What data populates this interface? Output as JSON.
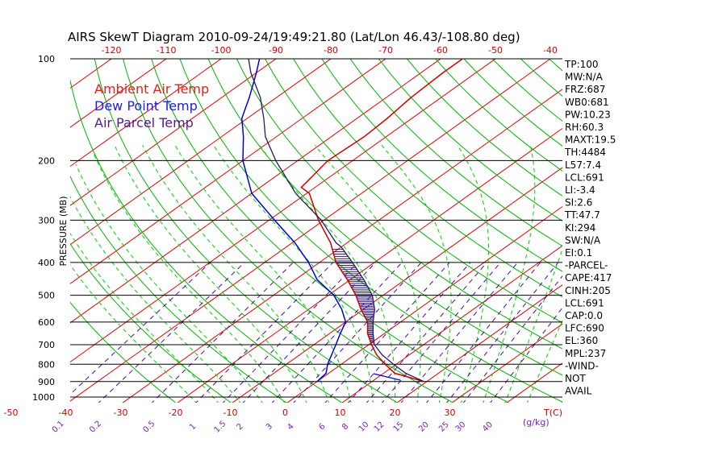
{
  "title": "AIRS SkewT Diagram 2010-09-24/19:49:21.80 (Lat/Lon 46.43/-108.80 deg)",
  "colors": {
    "background": "#ffffff",
    "isotherm": "#e00000",
    "dry_adiabat": "#00b400",
    "moist_adiabat": "#00d000",
    "mixing_ratio": "#4b0aa8",
    "ambient_temp": "#d00000",
    "dew_point": "#0000d0",
    "parcel": "#2a1a60",
    "axis_text": "#000000",
    "temp_tick_text": "#d00000",
    "mix_tick_text": "#7a20c0"
  },
  "legend": [
    {
      "label": "Ambient Air Temp",
      "color": "#e02020"
    },
    {
      "label": "Dew Point Temp",
      "color": "#2020e0"
    },
    {
      "label": "Air Parcel Temp",
      "color": "#5a1a8a"
    }
  ],
  "ylabel": "PRESSURE (MB)",
  "pressure_ticks": [
    "100",
    "200",
    "300",
    "400",
    "500",
    "600",
    "700",
    "800",
    "900",
    "1000"
  ],
  "temp_top_ticks": [
    "-120",
    "-110",
    "-100",
    "-90",
    "-80",
    "-70",
    "-60",
    "-50",
    "-40"
  ],
  "temp_bottom_ticks": [
    "-50",
    "-40",
    "-30",
    "-20",
    "-10",
    "0",
    "10",
    "20",
    "30"
  ],
  "temp_unit_label": "T(C)",
  "mix_ticks": [
    "0.1",
    "0.2",
    "0.5",
    "1",
    "1.5",
    "2",
    "3",
    "4",
    "6",
    "8",
    "10",
    "12",
    "15",
    "20",
    "25",
    "30",
    "40"
  ],
  "mix_unit_label": "(g/kg)",
  "stats": [
    "TP:100",
    "MW:N/A",
    "FRZ:687",
    "WB0:681",
    "PW:10.23",
    "RH:60.3",
    "MAXT:19.5",
    "TH:4484",
    "L57:7.4",
    "LCL:691",
    "LI:-3.4",
    "SI:2.6",
    "TT:47.7",
    "KI:294",
    "SW:N/A",
    "EI:0.1",
    "-PARCEL-",
    "CAPE:417",
    "CINH:205",
    "LCL:691",
    "CAP:0.0",
    "LFC:690",
    "EL:360",
    "MPL:237",
    "-WIND-",
    "NOT",
    "AVAIL"
  ],
  "chart_data": {
    "type": "line",
    "x_axis": "Temperature (C), skewed",
    "y_axis": "Pressure (mb), log scale",
    "ylim": [
      1050,
      100
    ],
    "series": [
      {
        "name": "Ambient Air Temp",
        "points": [
          [
            900,
            19.5
          ],
          [
            850,
            12
          ],
          [
            800,
            8
          ],
          [
            750,
            4
          ],
          [
            700,
            0.5
          ],
          [
            650,
            -3
          ],
          [
            600,
            -6
          ],
          [
            550,
            -10.5
          ],
          [
            500,
            -15
          ],
          [
            450,
            -20.5
          ],
          [
            400,
            -27
          ],
          [
            350,
            -33
          ],
          [
            300,
            -41
          ],
          [
            250,
            -49.5
          ],
          [
            240,
            -52.5
          ],
          [
            200,
            -54.5
          ],
          [
            170,
            -54
          ],
          [
            150,
            -54.5
          ],
          [
            130,
            -55.5
          ],
          [
            110,
            -56
          ],
          [
            100,
            -56
          ]
        ]
      },
      {
        "name": "Dew Point Temp",
        "points": [
          [
            900,
            0
          ],
          [
            850,
            -0.5
          ],
          [
            800,
            -2.5
          ],
          [
            700,
            -6
          ],
          [
            650,
            -8
          ],
          [
            600,
            -10
          ],
          [
            550,
            -14
          ],
          [
            500,
            -19
          ],
          [
            450,
            -26
          ],
          [
            400,
            -32
          ],
          [
            350,
            -39.5
          ],
          [
            300,
            -49
          ],
          [
            250,
            -60
          ],
          [
            200,
            -70
          ],
          [
            170,
            -76
          ],
          [
            150,
            -81
          ],
          [
            130,
            -85
          ],
          [
            110,
            -90
          ],
          [
            100,
            -93
          ]
        ]
      },
      {
        "name": "Air Parcel Temp",
        "points": [
          [
            900,
            19.5
          ],
          [
            850,
            14
          ],
          [
            800,
            9.5
          ],
          [
            750,
            5
          ],
          [
            700,
            1
          ],
          [
            650,
            -2
          ],
          [
            600,
            -5
          ],
          [
            550,
            -8
          ],
          [
            500,
            -12
          ],
          [
            450,
            -17.5
          ],
          [
            400,
            -24
          ],
          [
            360,
            -30
          ],
          [
            350,
            -32
          ],
          [
            300,
            -40.5
          ],
          [
            250,
            -52
          ],
          [
            200,
            -64
          ],
          [
            170,
            -72
          ],
          [
            150,
            -77
          ],
          [
            130,
            -83
          ],
          [
            110,
            -91
          ],
          [
            100,
            -95
          ]
        ]
      }
    ]
  }
}
